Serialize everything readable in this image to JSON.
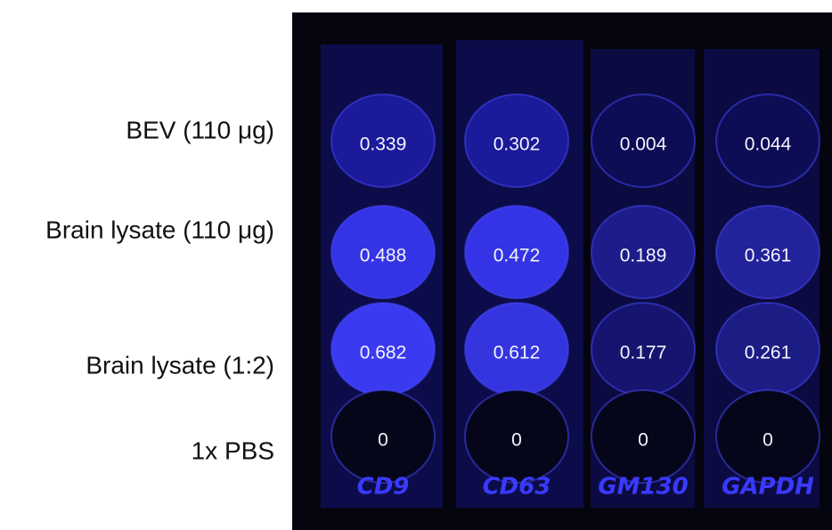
{
  "rows": [
    "BEV (110 μg)",
    "Brain lysate (110 μg)",
    "Brain lysate (1:2)",
    "1x PBS"
  ],
  "strips": [
    "CD9",
    "CD63",
    "GM130",
    "GAPDH"
  ],
  "values": [
    [
      "0.339",
      "0.302",
      "0.004",
      "0.044"
    ],
    [
      "0.488",
      "0.472",
      "0.189",
      "0.361"
    ],
    [
      "0.682",
      "0.612",
      "0.177",
      "0.261"
    ],
    [
      "0",
      "0",
      "0",
      "0"
    ]
  ]
}
